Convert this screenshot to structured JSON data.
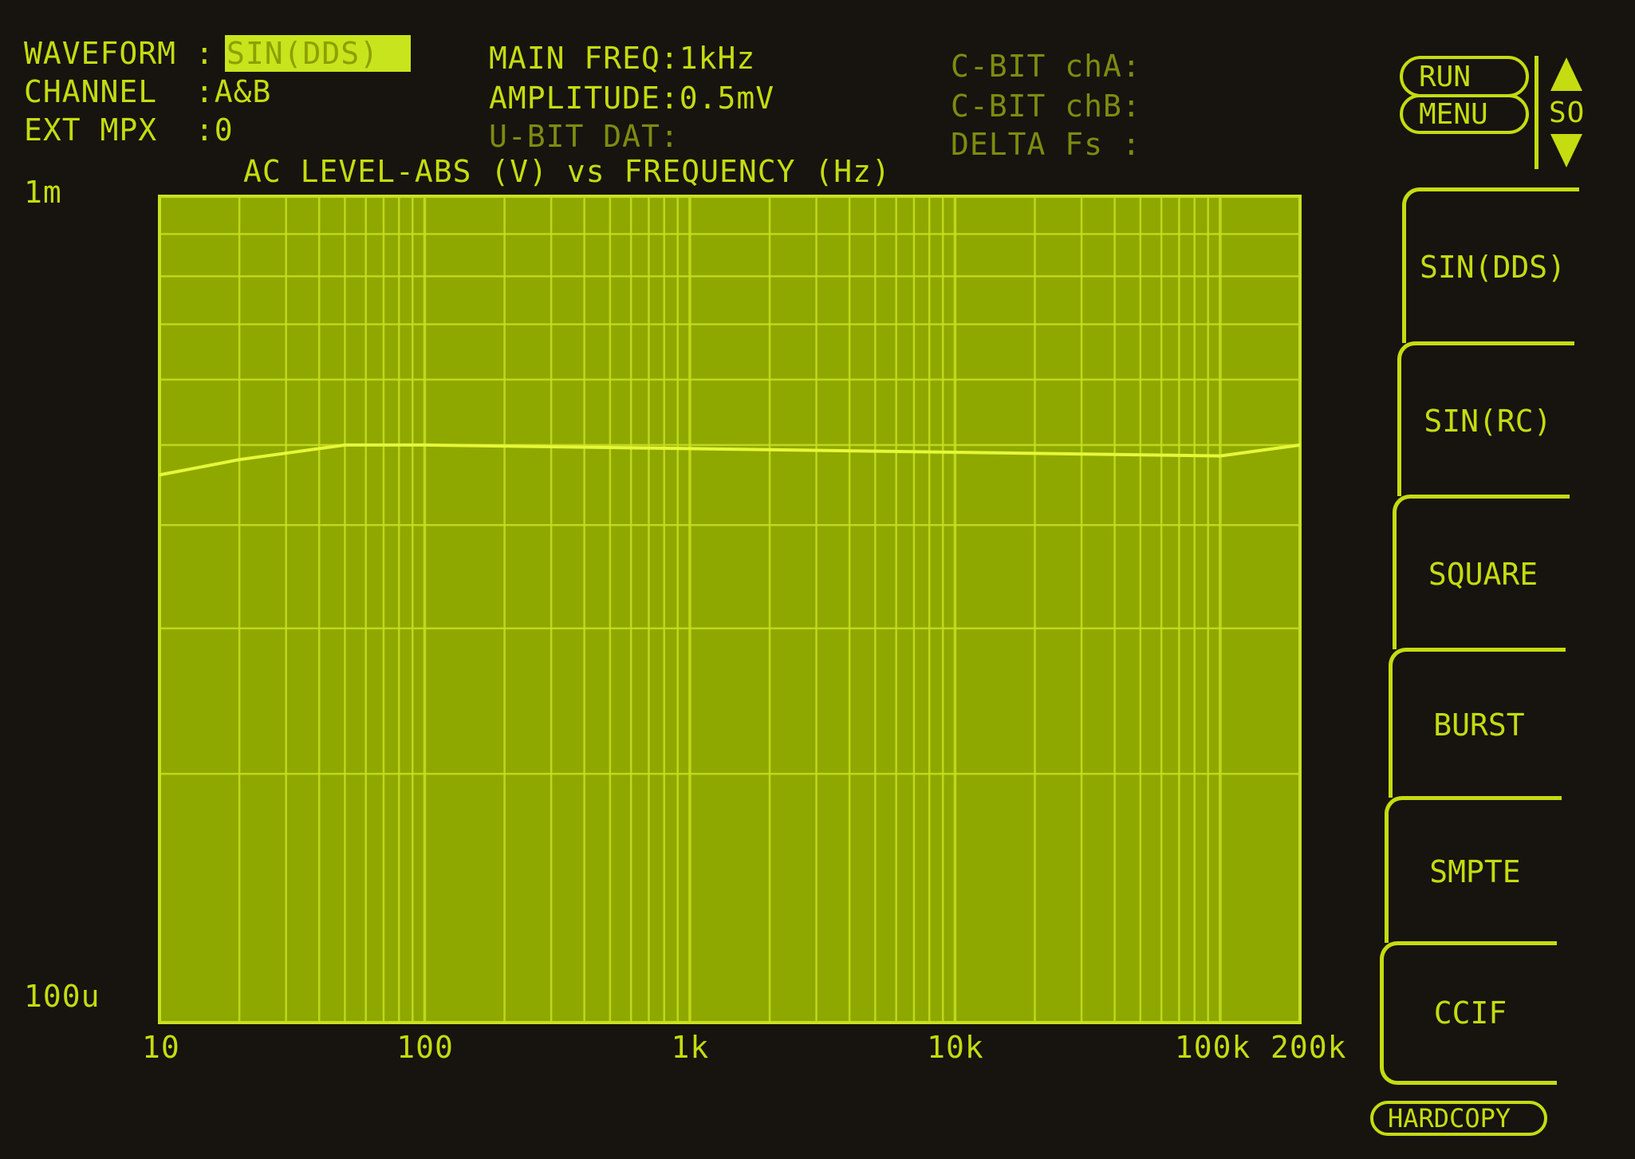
{
  "status": {
    "waveform_label": "WAVEFORM :",
    "waveform_value": "SIN(DDS)",
    "channel": "CHANNEL  :A&B",
    "ext_mpx": "EXT MPX  :0",
    "main_freq": "MAIN FREQ:1kHz",
    "amplitude": "AMPLITUDE:0.5mV",
    "ubit_dat": "U-BIT DAT:",
    "cbit_cha": "C-BIT chA:",
    "cbit_chb": "C-BIT chB:",
    "delta_fs": "DELTA Fs :"
  },
  "top_controls": {
    "run": "RUN",
    "menu": "MENU",
    "scroll_label": "SO"
  },
  "menu": [
    {
      "label": "SIN(DDS)"
    },
    {
      "label": "SIN(RC)"
    },
    {
      "label": "SQUARE"
    },
    {
      "label": "BURST"
    },
    {
      "label": "SMPTE"
    },
    {
      "label": "CCIF"
    }
  ],
  "hardcopy": "HARDCOPY",
  "colors": {
    "background": "#17130f",
    "plot_fill": "#8fa800",
    "grid": "#c8e020",
    "text": "#c4dc10"
  },
  "chart_data": {
    "type": "line",
    "title": "AC LEVEL-ABS (V) vs FREQUENCY (Hz)",
    "x_scale": "log",
    "y_scale": "log",
    "xlim": [
      10,
      200000
    ],
    "ylim": [
      0.0001,
      0.001
    ],
    "x_ticks": [
      {
        "value": 10,
        "label": "10"
      },
      {
        "value": 100,
        "label": "100"
      },
      {
        "value": 1000,
        "label": "1k"
      },
      {
        "value": 10000,
        "label": "10k"
      },
      {
        "value": 100000,
        "label": "100k"
      },
      {
        "value": 200000,
        "label": "200k"
      }
    ],
    "y_ticks": [
      {
        "value": 0.001,
        "label": "1m"
      },
      {
        "value": 0.0001,
        "label": "100u"
      }
    ],
    "grid": true,
    "series": [
      {
        "x": [
          10,
          20,
          50,
          100,
          1000,
          10000,
          100000,
          200000
        ],
        "y": [
          0.00046,
          0.00048,
          0.0005,
          0.0005,
          0.000495,
          0.00049,
          0.000485,
          0.0005
        ]
      }
    ]
  }
}
